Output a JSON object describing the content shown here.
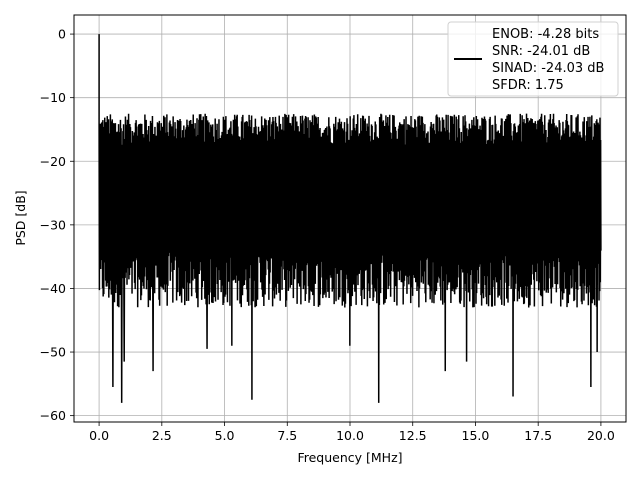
{
  "chart_data": {
    "type": "line",
    "xlabel": "Frequency [MHz]",
    "ylabel": "PSD [dB]",
    "xlim": [
      -1.0,
      21.0
    ],
    "ylim": [
      -61,
      3
    ],
    "x_ticks": [
      0.0,
      2.5,
      5.0,
      7.5,
      10.0,
      12.5,
      15.0,
      17.5,
      20.0
    ],
    "x_tick_labels": [
      "0.0",
      "2.5",
      "5.0",
      "7.5",
      "10.0",
      "12.5",
      "15.0",
      "17.5",
      "20.0"
    ],
    "y_ticks": [
      0,
      -10,
      -20,
      -30,
      -40,
      -50,
      -60
    ],
    "y_tick_labels": [
      "0",
      "−10",
      "−20",
      "−30",
      "−40",
      "−50",
      "−60"
    ],
    "grid": true,
    "legend_position": "top-right",
    "series": [
      {
        "name": "ENOB: -4.28 bits\nSNR: -24.01 dB\nSINAD: -24.03 dB\nSFDR: 1.75",
        "legend_lines": [
          "ENOB: -4.28 bits",
          "SNR: -24.01 dB",
          "SINAD: -24.03 dB",
          "SFDR: 1.75"
        ],
        "color": "#000000",
        "x_range": [
          0.0,
          20.0
        ],
        "noise_band": {
          "top": -15,
          "bottom": -40
        },
        "peak": {
          "x": 0.0,
          "y": 0.0
        },
        "dips": [
          {
            "x": 0.55,
            "y": -55.5
          },
          {
            "x": 0.9,
            "y": -58.0
          },
          {
            "x": 1.0,
            "y": -51.5
          },
          {
            "x": 2.15,
            "y": -53.0
          },
          {
            "x": 4.3,
            "y": -49.5
          },
          {
            "x": 5.3,
            "y": -49.0
          },
          {
            "x": 6.1,
            "y": -57.5
          },
          {
            "x": 10.0,
            "y": -49.0
          },
          {
            "x": 11.15,
            "y": -58.0
          },
          {
            "x": 13.8,
            "y": -53.0
          },
          {
            "x": 14.65,
            "y": -51.5
          },
          {
            "x": 16.5,
            "y": -57.0
          },
          {
            "x": 19.6,
            "y": -55.5
          },
          {
            "x": 19.85,
            "y": -50.0
          }
        ]
      }
    ]
  }
}
